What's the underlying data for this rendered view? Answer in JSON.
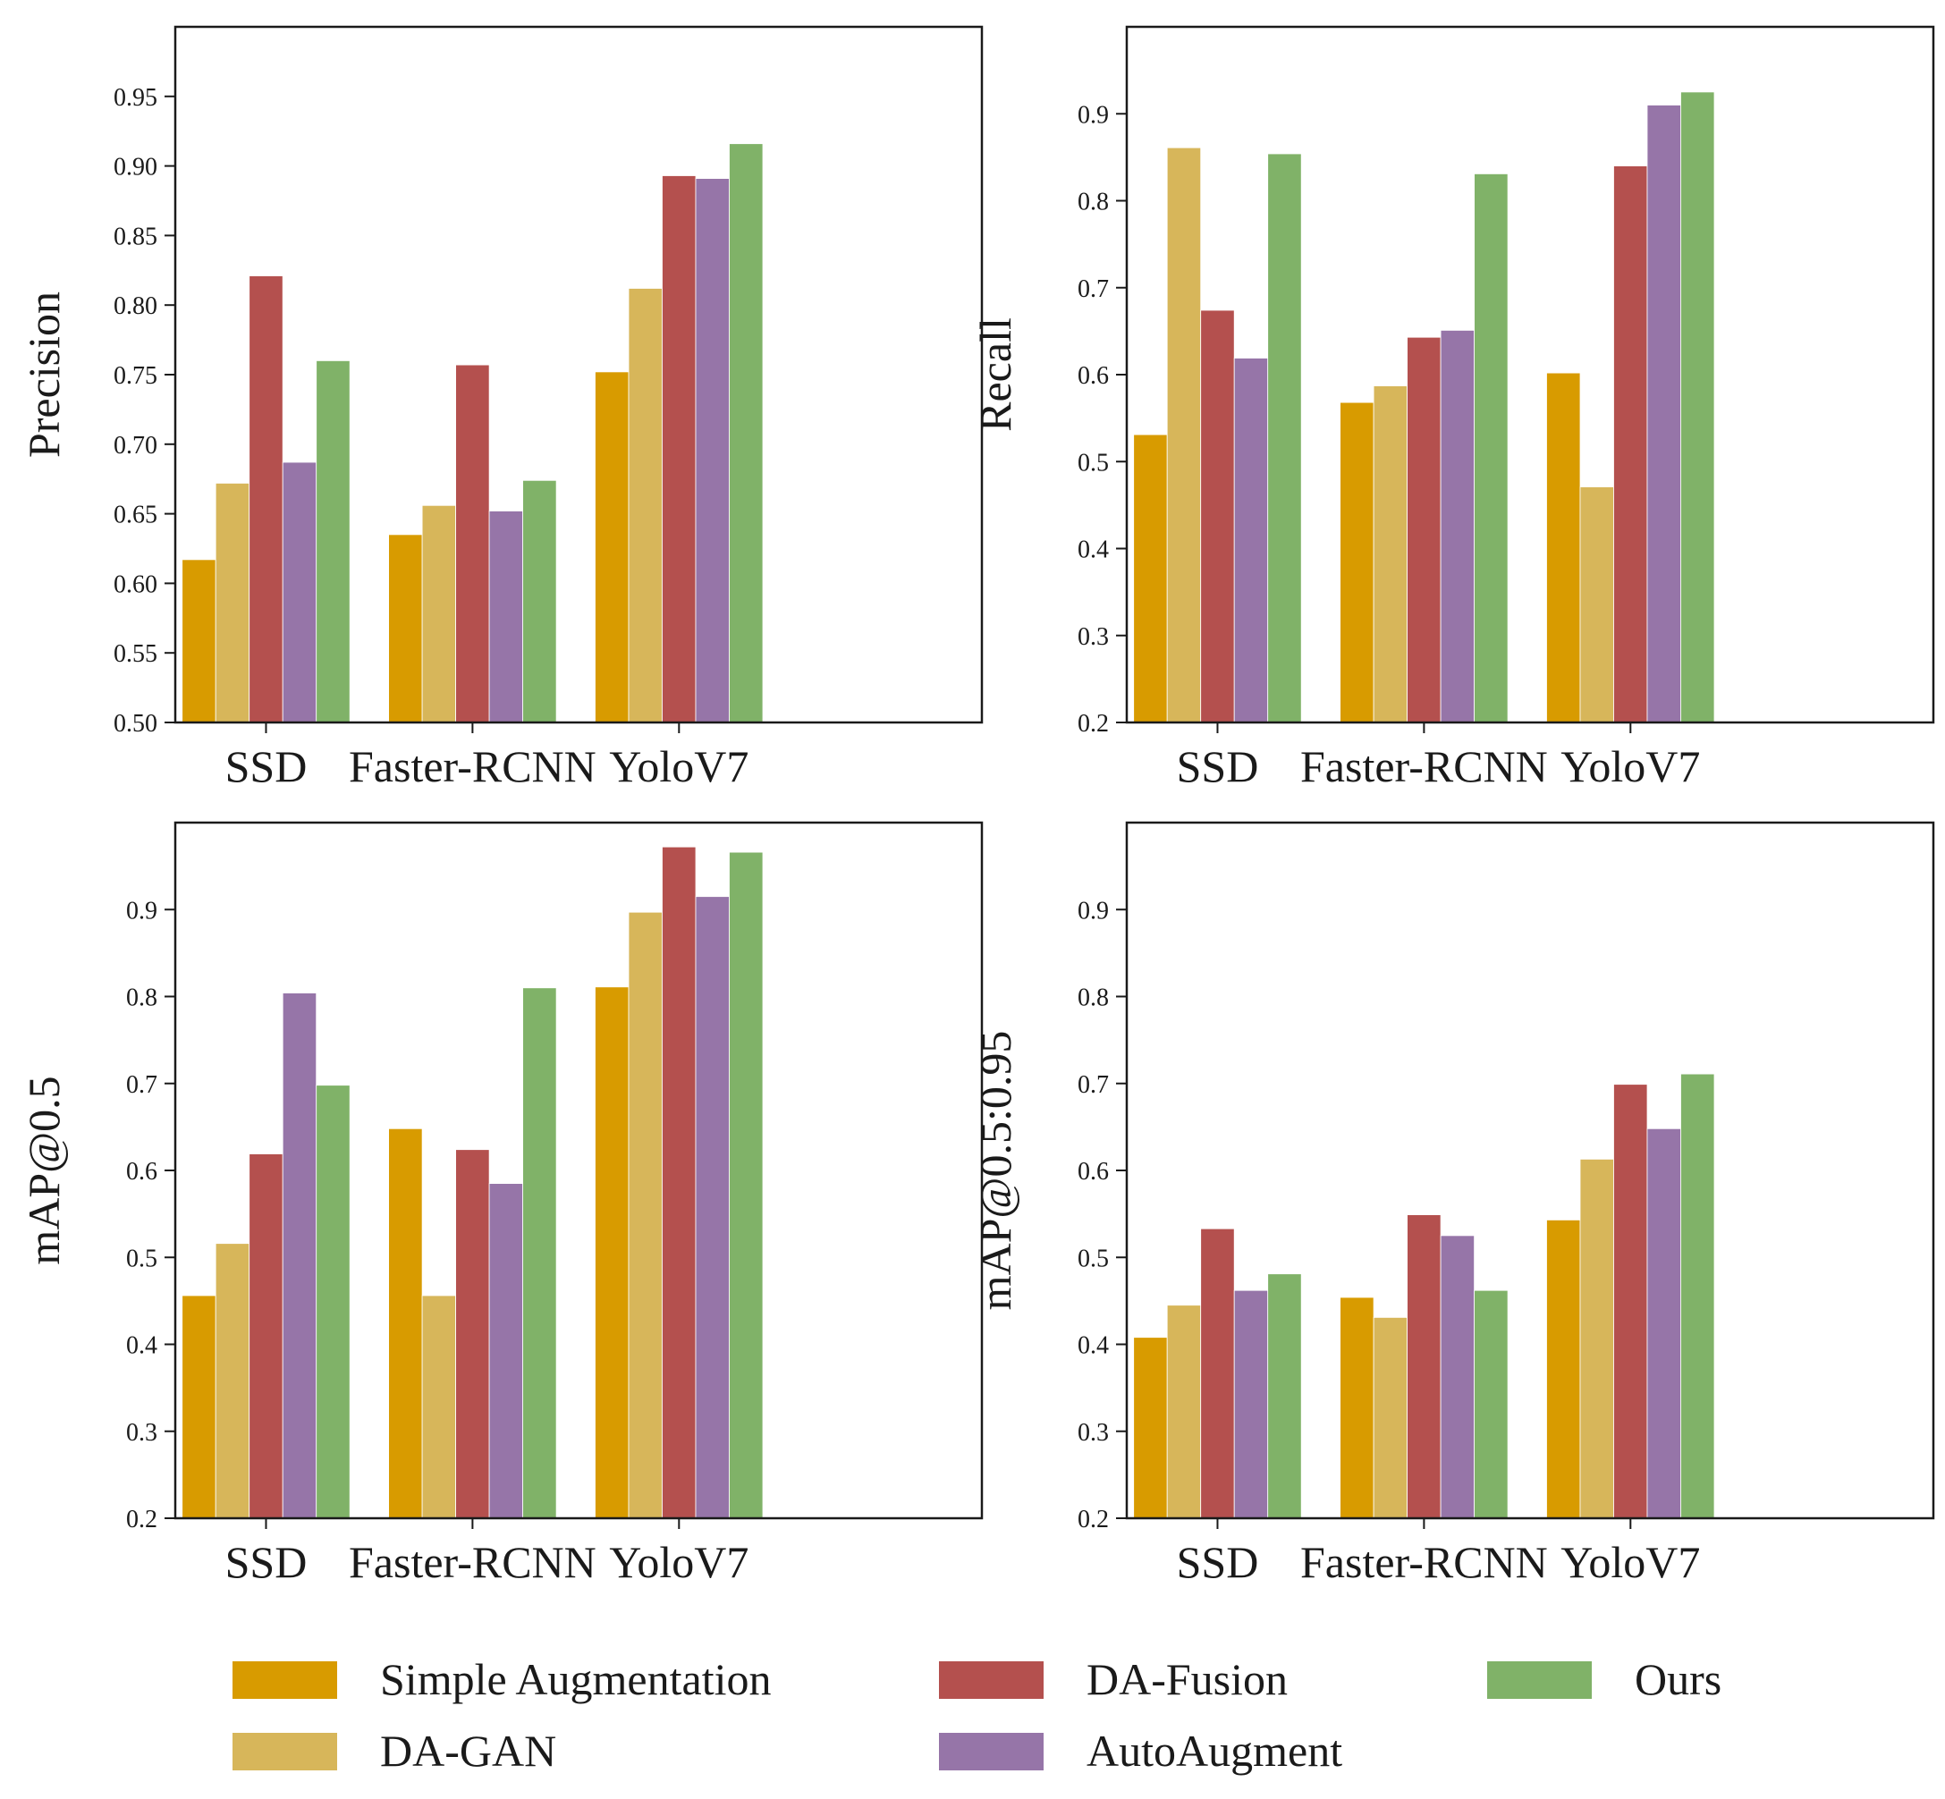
{
  "series_names": [
    "Simple Augmentation",
    "DA-GAN",
    "DA-Fusion",
    "AutoAugment",
    "Ours"
  ],
  "colors": [
    "#d89b00",
    "#d7b65a",
    "#b4504e",
    "#9675a8",
    "#80b268"
  ],
  "chart_data": [
    {
      "type": "bar",
      "ylabel": "Precision",
      "categories": [
        "SSD",
        "Faster-RCNN",
        "YoloV7"
      ],
      "ylim": [
        0.5,
        1.0
      ],
      "yticks": [
        "0.50",
        "0.55",
        "0.60",
        "0.65",
        "0.70",
        "0.75",
        "0.80",
        "0.85",
        "0.90",
        "0.95"
      ],
      "series": [
        {
          "name": "Simple Augmentation",
          "values": [
            0.617,
            0.635,
            0.752
          ]
        },
        {
          "name": "DA-GAN",
          "values": [
            0.672,
            0.656,
            0.812
          ]
        },
        {
          "name": "DA-Fusion",
          "values": [
            0.821,
            0.757,
            0.893
          ]
        },
        {
          "name": "AutoAugment",
          "values": [
            0.687,
            0.652,
            0.891
          ]
        },
        {
          "name": "Ours",
          "values": [
            0.76,
            0.674,
            0.916
          ]
        }
      ]
    },
    {
      "type": "bar",
      "ylabel": "Recall",
      "categories": [
        "SSD",
        "Faster-RCNN",
        "YoloV7"
      ],
      "ylim": [
        0.2,
        1.0
      ],
      "yticks": [
        "0.2",
        "0.3",
        "0.4",
        "0.5",
        "0.6",
        "0.7",
        "0.8",
        "0.9"
      ],
      "series": [
        {
          "name": "Simple Augmentation",
          "values": [
            0.531,
            0.568,
            0.602
          ]
        },
        {
          "name": "DA-GAN",
          "values": [
            0.861,
            0.587,
            0.471
          ]
        },
        {
          "name": "DA-Fusion",
          "values": [
            0.674,
            0.643,
            0.84
          ]
        },
        {
          "name": "AutoAugment",
          "values": [
            0.619,
            0.651,
            0.91
          ]
        },
        {
          "name": "Ours",
          "values": [
            0.854,
            0.831,
            0.925
          ]
        }
      ]
    },
    {
      "type": "bar",
      "ylabel": "mAP@0.5",
      "categories": [
        "SSD",
        "Faster-RCNN",
        "YoloV7"
      ],
      "ylim": [
        0.2,
        1.0
      ],
      "yticks": [
        "0.2",
        "0.3",
        "0.4",
        "0.5",
        "0.6",
        "0.7",
        "0.8",
        "0.9"
      ],
      "series": [
        {
          "name": "Simple Augmentation",
          "values": [
            0.456,
            0.648,
            0.811
          ]
        },
        {
          "name": "DA-GAN",
          "values": [
            0.516,
            0.456,
            0.897
          ]
        },
        {
          "name": "DA-Fusion",
          "values": [
            0.619,
            0.624,
            0.972
          ]
        },
        {
          "name": "AutoAugment",
          "values": [
            0.804,
            0.585,
            0.915
          ]
        },
        {
          "name": "Ours",
          "values": [
            0.698,
            0.81,
            0.966
          ]
        }
      ]
    },
    {
      "type": "bar",
      "ylabel": "mAP@0.5:0.95",
      "categories": [
        "SSD",
        "Faster-RCNN",
        "YoloV7"
      ],
      "ylim": [
        0.2,
        1.0
      ],
      "yticks": [
        "0.2",
        "0.3",
        "0.4",
        "0.5",
        "0.6",
        "0.7",
        "0.8",
        "0.9"
      ],
      "series": [
        {
          "name": "Simple Augmentation",
          "values": [
            0.408,
            0.454,
            0.543
          ]
        },
        {
          "name": "DA-GAN",
          "values": [
            0.445,
            0.431,
            0.613
          ]
        },
        {
          "name": "DA-Fusion",
          "values": [
            0.533,
            0.549,
            0.699
          ]
        },
        {
          "name": "AutoAugment",
          "values": [
            0.462,
            0.525,
            0.648
          ]
        },
        {
          "name": "Ours",
          "values": [
            0.481,
            0.462,
            0.711
          ]
        }
      ]
    }
  ]
}
